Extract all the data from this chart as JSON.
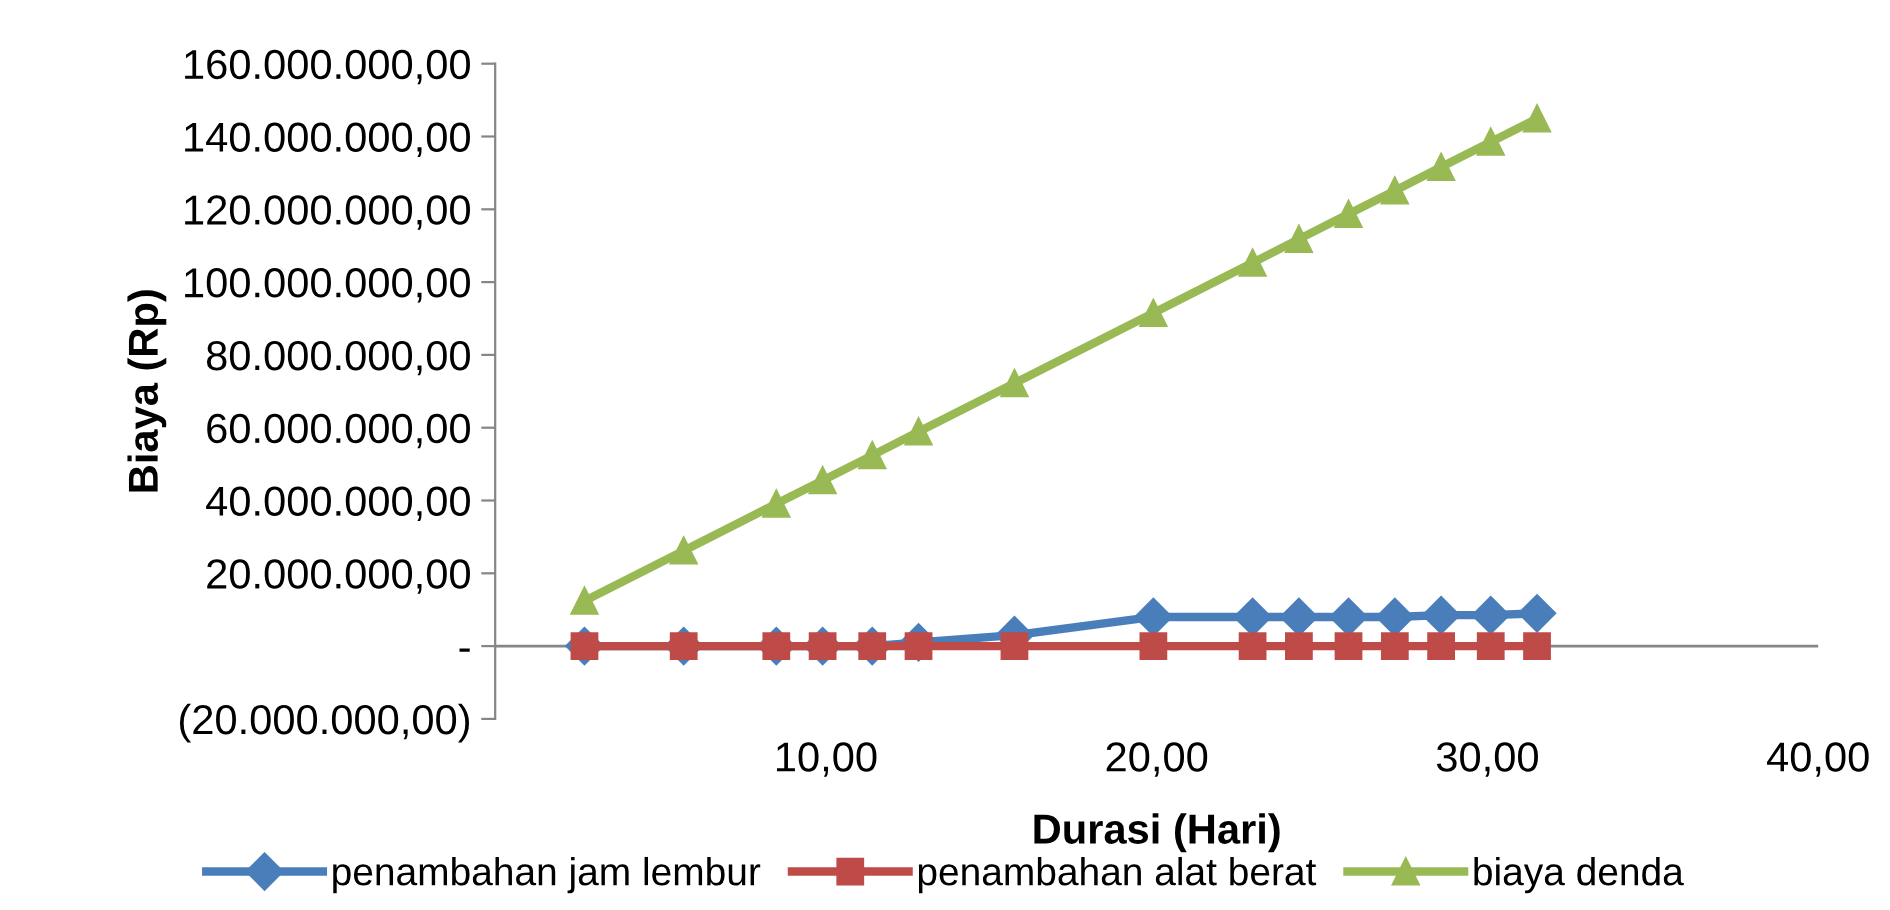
{
  "chart_data": {
    "type": "line",
    "xlabel": "Durasi (Hari)",
    "ylabel": "Biaya (Rp)",
    "x": [
      2.7,
      5.7,
      8.5,
      9.9,
      11.4,
      12.8,
      15.7,
      19.9,
      22.9,
      24.3,
      25.8,
      27.2,
      28.6,
      30.1,
      31.5
    ],
    "series": [
      {
        "name": "penambahan jam lembur",
        "color": "#4a7ebb",
        "marker": "diamond",
        "values": [
          0,
          0,
          0,
          0,
          0,
          1000000,
          3000000,
          8000000,
          8000000,
          8000000,
          8000000,
          8000000,
          8500000,
          8500000,
          9000000
        ]
      },
      {
        "name": "penambahan alat berat",
        "color": "#be4b48",
        "marker": "square",
        "values": [
          0,
          0,
          0,
          0,
          0,
          0,
          0,
          0,
          0,
          0,
          0,
          0,
          0,
          0,
          0
        ]
      },
      {
        "name": "biaya denda",
        "color": "#98b954",
        "marker": "triangle",
        "values": [
          12400000,
          26200000,
          39100000,
          45500000,
          52400000,
          58900000,
          72200000,
          91500000,
          105300000,
          111800000,
          118700000,
          125100000,
          131600000,
          138500000,
          144900000
        ]
      }
    ],
    "xlim": [
      0,
      40
    ],
    "xticks": [
      {
        "value": 10,
        "label": "10,00"
      },
      {
        "value": 20,
        "label": "20,00"
      },
      {
        "value": 30,
        "label": "30,00"
      },
      {
        "value": 40,
        "label": "40,00"
      }
    ],
    "ylim": [
      -20000000,
      160000000
    ],
    "yticks": [
      {
        "value": -20000000,
        "label": "(20.000.000,00)"
      },
      {
        "value": 0,
        "label": "-"
      },
      {
        "value": 20000000,
        "label": "20.000.000,00"
      },
      {
        "value": 40000000,
        "label": "40.000.000,00"
      },
      {
        "value": 60000000,
        "label": "60.000.000,00"
      },
      {
        "value": 80000000,
        "label": "80.000.000,00"
      },
      {
        "value": 100000000,
        "label": "100.000.000,00"
      },
      {
        "value": 120000000,
        "label": "120.000.000,00"
      },
      {
        "value": 140000000,
        "label": "140.000.000,00"
      },
      {
        "value": 160000000,
        "label": "160.000.000,00"
      }
    ],
    "grid": false,
    "legend": "bottom",
    "line_style": "solid"
  }
}
